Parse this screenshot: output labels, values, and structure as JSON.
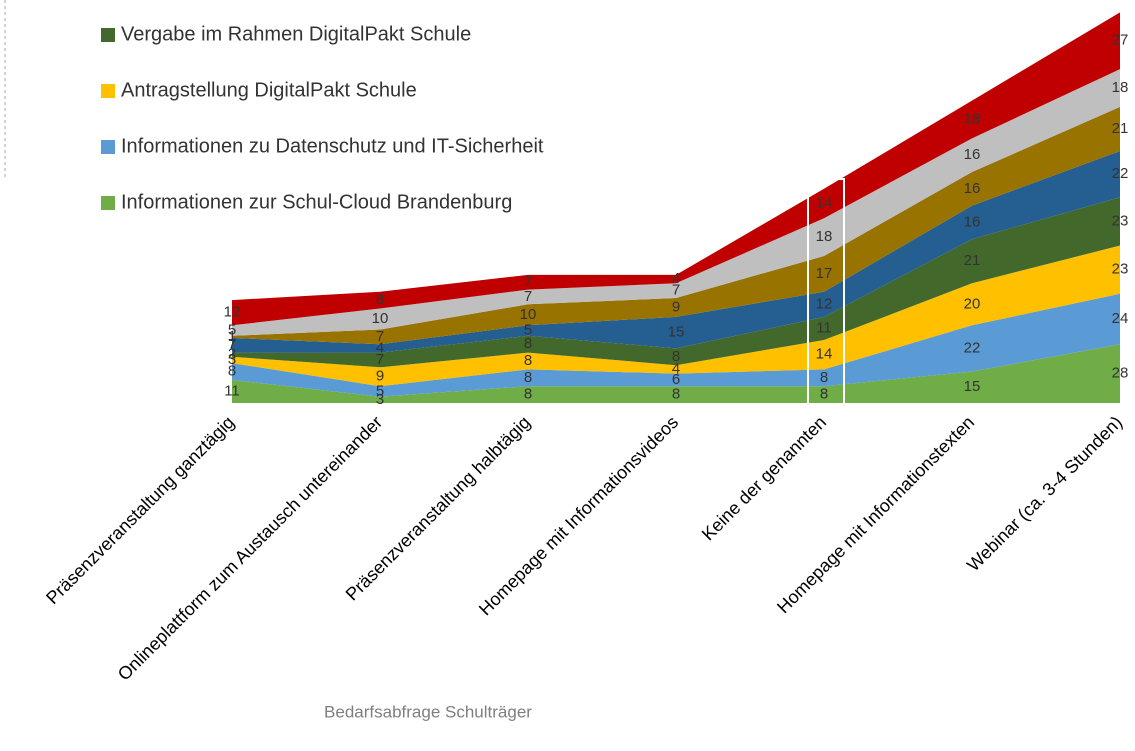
{
  "chart_data": {
    "type": "stacked_area",
    "categories": [
      "Präsenzveranstaltung ganztägig",
      "Onlineplattform zum Austausch untereinander",
      "Präsenzveranstaltung halbtägig",
      "Homepage mit Informationsvideos",
      "Keine der genannten",
      "Homepage mit Informationstexten",
      "Webinar (ca. 3-4 Stunden)"
    ],
    "series": [
      {
        "name": "Informationen zur Schul-Cloud Brandenburg",
        "color": "#70ad47",
        "values": [
          11,
          3,
          8,
          8,
          8,
          15,
          28
        ]
      },
      {
        "name": "Informationen zu Datenschutz und IT-Sicherheit",
        "color": "#5b9bd5",
        "values": [
          8,
          5,
          8,
          6,
          8,
          22,
          24
        ]
      },
      {
        "name": "Antragstellung DigitalPakt Schule",
        "color": "#ffc000",
        "values": [
          3,
          9,
          8,
          4,
          14,
          20,
          23
        ]
      },
      {
        "name": "Vergabe im Rahmen DigitalPakt Schule",
        "color": "#43682b",
        "values": [
          2,
          7,
          8,
          8,
          11,
          21,
          23
        ]
      },
      {
        "color": "#255e91",
        "values": [
          7,
          4,
          5,
          15,
          12,
          16,
          22
        ]
      },
      {
        "color": "#997300",
        "values": [
          1,
          7,
          10,
          9,
          17,
          16,
          21
        ]
      },
      {
        "color": "#bfbfbf",
        "values": [
          5,
          10,
          7,
          7,
          18,
          16,
          18
        ]
      },
      {
        "color": "#c00000",
        "values": [
          12,
          8,
          7,
          4,
          14,
          18,
          27
        ]
      }
    ],
    "legend_position": "top-left",
    "footer": "Bedarfsabfrage Schulträger"
  }
}
